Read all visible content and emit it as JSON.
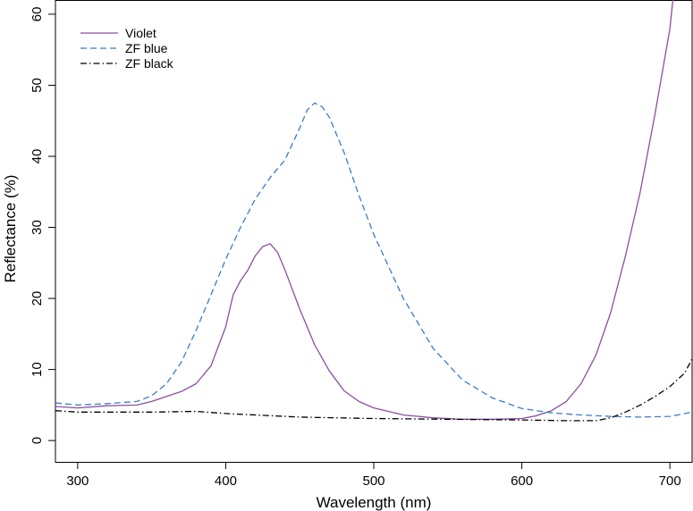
{
  "chart_data": {
    "type": "line",
    "title": "",
    "xlabel": "Wavelength (nm)",
    "ylabel": "Reflectance (%)",
    "xlim": [
      285,
      715
    ],
    "ylim": [
      -3,
      62
    ],
    "xticks": [
      300,
      400,
      500,
      600,
      700
    ],
    "yticks": [
      0,
      10,
      20,
      30,
      40,
      50,
      60
    ],
    "grid": false,
    "legend_position": "top-left",
    "series": [
      {
        "name": "Violet",
        "color": "#8a4fa0",
        "dash": "solid",
        "x": [
          285,
          300,
          320,
          340,
          350,
          360,
          370,
          380,
          390,
          400,
          405,
          410,
          415,
          420,
          425,
          430,
          435,
          440,
          450,
          460,
          470,
          480,
          490,
          500,
          520,
          540,
          560,
          580,
          600,
          610,
          620,
          630,
          640,
          650,
          660,
          670,
          680,
          690,
          700,
          702
        ],
        "y": [
          4.8,
          4.6,
          4.9,
          5.0,
          5.5,
          6.2,
          6.9,
          8.0,
          10.5,
          16.0,
          20.5,
          22.5,
          24.0,
          26.0,
          27.3,
          27.7,
          26.5,
          24.0,
          18.5,
          13.5,
          9.8,
          7.0,
          5.5,
          4.6,
          3.6,
          3.2,
          3.0,
          3.0,
          3.1,
          3.5,
          4.2,
          5.5,
          8.0,
          12.0,
          18.0,
          26.0,
          35.0,
          46.0,
          58.0,
          62.0
        ]
      },
      {
        "name": "ZF blue",
        "color": "#3a7cc9",
        "dash": "dashed",
        "x": [
          285,
          300,
          320,
          340,
          350,
          360,
          370,
          380,
          390,
          400,
          410,
          420,
          430,
          440,
          450,
          455,
          460,
          465,
          470,
          480,
          490,
          500,
          520,
          540,
          560,
          580,
          600,
          620,
          640,
          660,
          680,
          700,
          715
        ],
        "y": [
          5.3,
          5.0,
          5.2,
          5.5,
          6.3,
          8.0,
          11.0,
          15.5,
          20.5,
          25.5,
          30.0,
          34.0,
          37.0,
          39.5,
          44.0,
          46.5,
          47.5,
          47.0,
          45.5,
          40.5,
          34.5,
          29.0,
          20.0,
          13.0,
          8.5,
          6.0,
          4.5,
          3.9,
          3.6,
          3.4,
          3.3,
          3.4,
          4.0
        ]
      },
      {
        "name": "ZF black",
        "color": "#000000",
        "dash": "dashdot",
        "x": [
          285,
          300,
          350,
          380,
          400,
          420,
          450,
          500,
          550,
          600,
          630,
          650,
          660,
          670,
          680,
          690,
          700,
          710,
          715
        ],
        "y": [
          4.2,
          4.0,
          4.0,
          4.1,
          3.8,
          3.6,
          3.3,
          3.1,
          3.0,
          2.9,
          2.8,
          2.8,
          3.2,
          4.0,
          5.0,
          6.2,
          7.6,
          9.5,
          11.5
        ]
      }
    ]
  }
}
